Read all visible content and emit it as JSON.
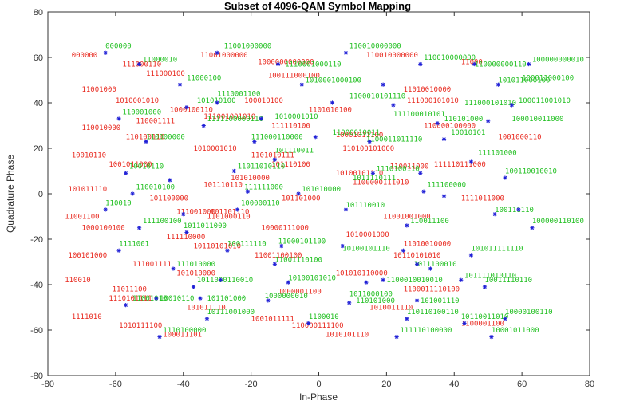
{
  "chart_data": {
    "type": "scatter",
    "title": "Subset of 4096-QAM Symbol Mapping",
    "xlabel": "In-Phase",
    "ylabel": "Quadrature Phase",
    "xlim": [
      -80,
      80
    ],
    "ylim": [
      -80,
      80
    ],
    "xticks": [
      -80,
      -60,
      -40,
      -20,
      0,
      20,
      40,
      60,
      80
    ],
    "yticks": [
      -80,
      -60,
      -40,
      -20,
      0,
      20,
      40,
      60,
      80
    ],
    "grid": false,
    "colors": {
      "marker": "#1f1fd6",
      "label_red": "#e8281e",
      "label_green": "#1fbf1f",
      "axis": "#333333"
    },
    "points": [
      {
        "x": -63,
        "y": 62
      },
      {
        "x": -53,
        "y": 57
      },
      {
        "x": -30,
        "y": 62
      },
      {
        "x": -12,
        "y": 57
      },
      {
        "x": 8,
        "y": 62
      },
      {
        "x": 30,
        "y": 57
      },
      {
        "x": 46,
        "y": 57
      },
      {
        "x": 62,
        "y": 57
      },
      {
        "x": -41,
        "y": 48
      },
      {
        "x": -5,
        "y": 48
      },
      {
        "x": 19,
        "y": 48
      },
      {
        "x": 53,
        "y": 48
      },
      {
        "x": -39,
        "y": 38
      },
      {
        "x": -30,
        "y": 40
      },
      {
        "x": 4,
        "y": 40
      },
      {
        "x": 22,
        "y": 39
      },
      {
        "x": 57,
        "y": 39
      },
      {
        "x": -59,
        "y": 33
      },
      {
        "x": -34,
        "y": 30
      },
      {
        "x": -17,
        "y": 33
      },
      {
        "x": 35,
        "y": 31
      },
      {
        "x": 50,
        "y": 32
      },
      {
        "x": -51,
        "y": 23
      },
      {
        "x": -19,
        "y": 23
      },
      {
        "x": -1,
        "y": 25
      },
      {
        "x": 15,
        "y": 23
      },
      {
        "x": 37,
        "y": 24
      },
      {
        "x": -57,
        "y": 9
      },
      {
        "x": -44,
        "y": 6
      },
      {
        "x": -25,
        "y": 10
      },
      {
        "x": -13,
        "y": 15
      },
      {
        "x": 16,
        "y": 9
      },
      {
        "x": 30,
        "y": 9
      },
      {
        "x": 45,
        "y": 14
      },
      {
        "x": 55,
        "y": 7
      },
      {
        "x": -55,
        "y": 0
      },
      {
        "x": -21,
        "y": 1
      },
      {
        "x": -6,
        "y": 0
      },
      {
        "x": 8,
        "y": -7
      },
      {
        "x": 31,
        "y": 1
      },
      {
        "x": 37,
        "y": -1
      },
      {
        "x": 59,
        "y": -7
      },
      {
        "x": -63,
        "y": -7
      },
      {
        "x": -40,
        "y": -9
      },
      {
        "x": -24,
        "y": -7
      },
      {
        "x": -53,
        "y": -15
      },
      {
        "x": -39,
        "y": -17
      },
      {
        "x": 26,
        "y": -14
      },
      {
        "x": 52,
        "y": -9
      },
      {
        "x": 63,
        "y": -15
      },
      {
        "x": -59,
        "y": -25
      },
      {
        "x": -27,
        "y": -25
      },
      {
        "x": -11,
        "y": -23
      },
      {
        "x": 7,
        "y": -23
      },
      {
        "x": 25,
        "y": -25
      },
      {
        "x": 45,
        "y": -27
      },
      {
        "x": -43,
        "y": -33
      },
      {
        "x": -13,
        "y": -31
      },
      {
        "x": 29,
        "y": -31
      },
      {
        "x": 33,
        "y": -33
      },
      {
        "x": -37,
        "y": -41
      },
      {
        "x": -29,
        "y": -38
      },
      {
        "x": -9,
        "y": -39
      },
      {
        "x": 14,
        "y": -39
      },
      {
        "x": 19,
        "y": -38
      },
      {
        "x": 42,
        "y": -38
      },
      {
        "x": 49,
        "y": -41
      },
      {
        "x": -57,
        "y": -49
      },
      {
        "x": -48,
        "y": -46
      },
      {
        "x": -35,
        "y": -46
      },
      {
        "x": -15,
        "y": -47
      },
      {
        "x": 9,
        "y": -48
      },
      {
        "x": 29,
        "y": -47
      },
      {
        "x": -33,
        "y": -55
      },
      {
        "x": -3,
        "y": -57
      },
      {
        "x": 26,
        "y": -55
      },
      {
        "x": 43,
        "y": -57
      },
      {
        "x": 55,
        "y": -55
      },
      {
        "x": -47,
        "y": -63
      },
      {
        "x": 23,
        "y": -63
      },
      {
        "x": 51,
        "y": -63
      }
    ],
    "red_labels": [
      {
        "text": "000000",
        "x": -73,
        "y": 60
      },
      {
        "text": "111000110",
        "x": -58,
        "y": 56
      },
      {
        "text": "111000100",
        "x": -51,
        "y": 52
      },
      {
        "text": "11001000000",
        "x": -35,
        "y": 60
      },
      {
        "text": "1000000000000",
        "x": -18,
        "y": 57
      },
      {
        "text": "100111000100",
        "x": -15,
        "y": 51
      },
      {
        "text": "110010000000",
        "x": 14,
        "y": 60
      },
      {
        "text": "11000",
        "x": 42,
        "y": 57
      },
      {
        "text": "11001000",
        "x": -70,
        "y": 45
      },
      {
        "text": "1010001010",
        "x": -60,
        "y": 40
      },
      {
        "text": "1000100110",
        "x": -44,
        "y": 36
      },
      {
        "text": "100010100",
        "x": -22,
        "y": 40
      },
      {
        "text": "1101010100",
        "x": -3,
        "y": 36
      },
      {
        "text": "11010010000",
        "x": 25,
        "y": 45
      },
      {
        "text": "111000101010",
        "x": 26,
        "y": 40
      },
      {
        "text": "110001111",
        "x": -54,
        "y": 31
      },
      {
        "text": "111001001010",
        "x": -34,
        "y": 33
      },
      {
        "text": "111110100",
        "x": -14,
        "y": 29
      },
      {
        "text": "110000100000",
        "x": 31,
        "y": 29
      },
      {
        "text": "1001000110",
        "x": 53,
        "y": 24
      },
      {
        "text": "110010000",
        "x": -70,
        "y": 28
      },
      {
        "text": "110100110",
        "x": -57,
        "y": 24
      },
      {
        "text": "1010001010",
        "x": -37,
        "y": 19
      },
      {
        "text": "10001011100",
        "x": 5,
        "y": 25
      },
      {
        "text": "110100101000",
        "x": 7,
        "y": 19
      },
      {
        "text": "10010110",
        "x": -73,
        "y": 16
      },
      {
        "text": "1001011000",
        "x": -62,
        "y": 12
      },
      {
        "text": "1101010111",
        "x": -20,
        "y": 16
      },
      {
        "text": "101110100",
        "x": -14,
        "y": 12
      },
      {
        "text": "101110110",
        "x": -34,
        "y": 3
      },
      {
        "text": "110011000",
        "x": 21,
        "y": 11
      },
      {
        "text": "111110111000",
        "x": 34,
        "y": 12
      },
      {
        "text": "101010000",
        "x": -26,
        "y": 6
      },
      {
        "text": "10100101110",
        "x": 5,
        "y": 8
      },
      {
        "text": "1100000111010",
        "x": 10,
        "y": 4
      },
      {
        "text": "101011110",
        "x": -74,
        "y": 1
      },
      {
        "text": "101100000",
        "x": -50,
        "y": -3
      },
      {
        "text": "101101000",
        "x": -11,
        "y": -3
      },
      {
        "text": "101101110",
        "x": -32,
        "y": -9
      },
      {
        "text": "1111011000",
        "x": 42,
        "y": -3
      },
      {
        "text": "111001000",
        "x": -42,
        "y": -9
      },
      {
        "text": "1101000110",
        "x": -33,
        "y": -11
      },
      {
        "text": "11001001000",
        "x": 19,
        "y": -11
      },
      {
        "text": "11001100",
        "x": -75,
        "y": -11
      },
      {
        "text": "1000100100",
        "x": -70,
        "y": -16
      },
      {
        "text": "10000111000",
        "x": -17,
        "y": -16
      },
      {
        "text": "111110000",
        "x": -45,
        "y": -20
      },
      {
        "text": "1010001000",
        "x": 8,
        "y": -19
      },
      {
        "text": "10110101010",
        "x": -37,
        "y": -24
      },
      {
        "text": "11010010000",
        "x": 25,
        "y": -23
      },
      {
        "text": "100101000",
        "x": -74,
        "y": -28
      },
      {
        "text": "11001100100",
        "x": -19,
        "y": -28
      },
      {
        "text": "111001111",
        "x": -55,
        "y": -32
      },
      {
        "text": "10110101010",
        "x": 22,
        "y": -28
      },
      {
        "text": "101010000",
        "x": -42,
        "y": -36
      },
      {
        "text": "101010110000",
        "x": 5,
        "y": -36
      },
      {
        "text": "110010",
        "x": -75,
        "y": -39
      },
      {
        "text": "11011100",
        "x": -61,
        "y": -43
      },
      {
        "text": "1110101111",
        "x": -62,
        "y": -47
      },
      {
        "text": "1000001100",
        "x": -12,
        "y": -44
      },
      {
        "text": "1100011110100",
        "x": 25,
        "y": -43
      },
      {
        "text": "101011110",
        "x": -39,
        "y": -51
      },
      {
        "text": "1010011110",
        "x": 15,
        "y": -51
      },
      {
        "text": "1111010",
        "x": -73,
        "y": -55
      },
      {
        "text": "1001011111",
        "x": -20,
        "y": -56
      },
      {
        "text": "110000111100",
        "x": -8,
        "y": -59
      },
      {
        "text": "1100001100",
        "x": 42,
        "y": -58
      },
      {
        "text": "1010111100",
        "x": -59,
        "y": -59
      },
      {
        "text": "100011101",
        "x": -46,
        "y": -63
      },
      {
        "text": "1010101110",
        "x": 2,
        "y": -63
      }
    ],
    "green_labels": [
      {
        "text": "000000",
        "x": -63,
        "y": 64
      },
      {
        "text": "11000010",
        "x": -52,
        "y": 58
      },
      {
        "text": "11001000000",
        "x": -28,
        "y": 64
      },
      {
        "text": "1110001000110",
        "x": -10,
        "y": 56
      },
      {
        "text": "110010000000",
        "x": 9,
        "y": 64
      },
      {
        "text": "110010000000",
        "x": 31,
        "y": 59
      },
      {
        "text": "110000000110",
        "x": 46,
        "y": 56
      },
      {
        "text": "100000000010",
        "x": 63,
        "y": 58
      },
      {
        "text": "11000100",
        "x": -39,
        "y": 50
      },
      {
        "text": "1010001000100",
        "x": -4,
        "y": 49
      },
      {
        "text": "101011000100",
        "x": 53,
        "y": 49
      },
      {
        "text": "100011000100",
        "x": 60,
        "y": 50
      },
      {
        "text": "1110001100",
        "x": -30,
        "y": 43
      },
      {
        "text": "101010100",
        "x": -36,
        "y": 40
      },
      {
        "text": "1100010101110",
        "x": 9,
        "y": 42
      },
      {
        "text": "111000101010",
        "x": 43,
        "y": 39
      },
      {
        "text": "100011001010",
        "x": 59,
        "y": 40
      },
      {
        "text": "110001000",
        "x": -58,
        "y": 35
      },
      {
        "text": "1111100000110",
        "x": -33,
        "y": 32
      },
      {
        "text": "1010001010",
        "x": -13,
        "y": 33
      },
      {
        "text": "111100010101",
        "x": 22,
        "y": 34
      },
      {
        "text": "110101000",
        "x": 37,
        "y": 32
      },
      {
        "text": "100010011000",
        "x": 57,
        "y": 32
      },
      {
        "text": "110000000",
        "x": -51,
        "y": 24
      },
      {
        "text": "111000110000",
        "x": -20,
        "y": 24
      },
      {
        "text": "11000010011",
        "x": 4,
        "y": 26
      },
      {
        "text": "10010101",
        "x": 39,
        "y": 26
      },
      {
        "text": "101110011",
        "x": -13,
        "y": 18
      },
      {
        "text": "1100011011110",
        "x": 14,
        "y": 23
      },
      {
        "text": "111101000",
        "x": 47,
        "y": 17
      },
      {
        "text": "10010110",
        "x": -56,
        "y": 11
      },
      {
        "text": "11011010110",
        "x": -24,
        "y": 11
      },
      {
        "text": "1110100110",
        "x": 17,
        "y": 10
      },
      {
        "text": "1011110111",
        "x": 10,
        "y": 6
      },
      {
        "text": "100110010010",
        "x": 55,
        "y": 9
      },
      {
        "text": "110010100",
        "x": -54,
        "y": 2
      },
      {
        "text": "111111000",
        "x": -22,
        "y": 2
      },
      {
        "text": "101010000",
        "x": -5,
        "y": 1
      },
      {
        "text": "111100000",
        "x": 32,
        "y": 3
      },
      {
        "text": "110010",
        "x": -63,
        "y": -5
      },
      {
        "text": "100000110",
        "x": -23,
        "y": -5
      },
      {
        "text": "101110010",
        "x": 8,
        "y": -6
      },
      {
        "text": "100111110",
        "x": 52,
        "y": -8
      },
      {
        "text": "100000110100",
        "x": 63,
        "y": -13
      },
      {
        "text": "111100100",
        "x": -52,
        "y": -13
      },
      {
        "text": "1011011000",
        "x": -40,
        "y": -15
      },
      {
        "text": "110011100",
        "x": 27,
        "y": -13
      },
      {
        "text": "1111001",
        "x": -59,
        "y": -23
      },
      {
        "text": "100111110",
        "x": -27,
        "y": -23
      },
      {
        "text": "11000101100",
        "x": -12,
        "y": -22
      },
      {
        "text": "10100101110",
        "x": 7,
        "y": -25
      },
      {
        "text": "101011111110",
        "x": 45,
        "y": -25
      },
      {
        "text": "111010000",
        "x": -42,
        "y": -32
      },
      {
        "text": "11001110100",
        "x": -13,
        "y": -30
      },
      {
        "text": "1011100010",
        "x": 28,
        "y": -32
      },
      {
        "text": "10100101010",
        "x": -9,
        "y": -38
      },
      {
        "text": "1100010010010",
        "x": 20,
        "y": -39
      },
      {
        "text": "101111010110",
        "x": 43,
        "y": -37
      },
      {
        "text": "10011110110",
        "x": 49,
        "y": -39
      },
      {
        "text": "1011000110010",
        "x": -36,
        "y": -39
      },
      {
        "text": "11001010",
        "x": -55,
        "y": -47
      },
      {
        "text": "10010110",
        "x": -47,
        "y": -47
      },
      {
        "text": "101101000",
        "x": -33,
        "y": -47
      },
      {
        "text": "1000000010",
        "x": -16,
        "y": -46
      },
      {
        "text": "1011000100",
        "x": 9,
        "y": -45
      },
      {
        "text": "110101000",
        "x": 11,
        "y": -48
      },
      {
        "text": "101001110",
        "x": 30,
        "y": -48
      },
      {
        "text": "10111001000",
        "x": -33,
        "y": -53
      },
      {
        "text": "1100010",
        "x": -3,
        "y": -55
      },
      {
        "text": "110110100110",
        "x": 26,
        "y": -53
      },
      {
        "text": "10110011010",
        "x": 42,
        "y": -55
      },
      {
        "text": "10000100110",
        "x": 55,
        "y": -53
      },
      {
        "text": "111110100000",
        "x": 24,
        "y": -61
      },
      {
        "text": "10001011000",
        "x": 51,
        "y": -61
      },
      {
        "text": "1110100000",
        "x": -46,
        "y": -61
      }
    ]
  }
}
